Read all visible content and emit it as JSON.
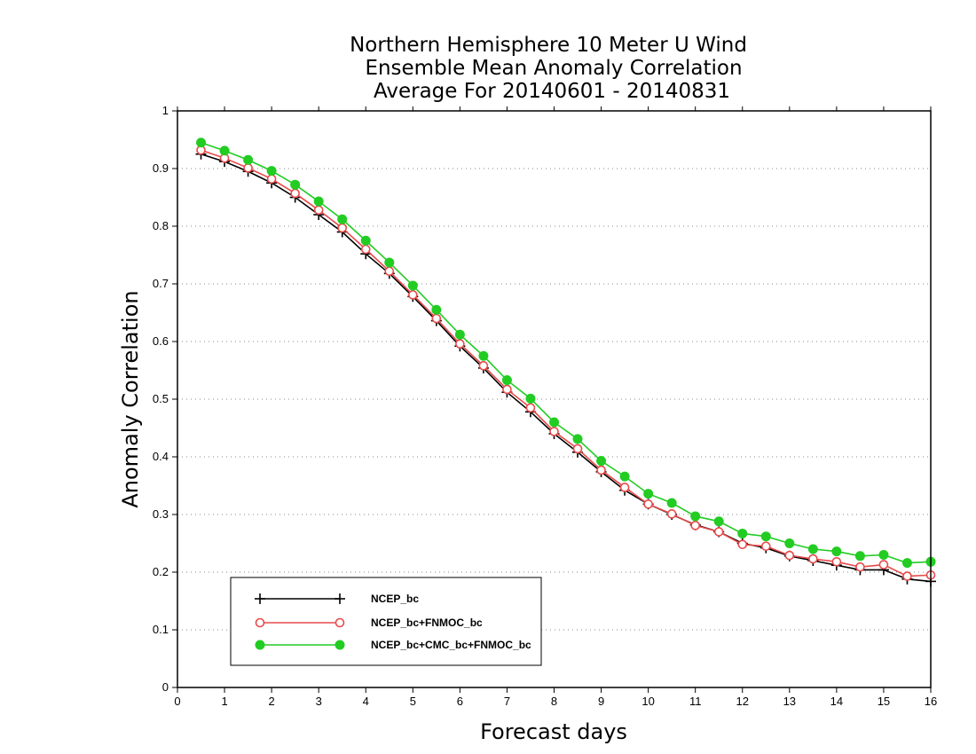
{
  "chart_data": {
    "type": "line",
    "title": [
      "Northern Hemisphere 10 Meter U Wind",
      "Ensemble Mean Anomaly Correlation",
      "Average For 20140601 - 20140831"
    ],
    "xlabel": "Forecast days",
    "ylabel": "Anomaly Correlation",
    "xlim": [
      0,
      16
    ],
    "ylim": [
      0,
      1
    ],
    "xticks": [
      0,
      1,
      2,
      3,
      4,
      5,
      6,
      7,
      8,
      9,
      10,
      11,
      12,
      13,
      14,
      15,
      16
    ],
    "yticks": [
      0,
      0.1,
      0.2,
      0.3,
      0.4,
      0.5,
      0.6,
      0.7,
      0.8,
      0.9,
      1
    ],
    "grid": "horizontal dotted",
    "legend_position": "bottom-left",
    "x": [
      0.5,
      1,
      1.5,
      2,
      2.5,
      3,
      3.5,
      4,
      4.5,
      5,
      5.5,
      6,
      6.5,
      7,
      7.5,
      8,
      8.5,
      9,
      9.5,
      10,
      10.5,
      11,
      11.5,
      12,
      12.5,
      13,
      13.5,
      14,
      14.5,
      15,
      15.5,
      16
    ],
    "series": [
      {
        "name": "NCEP_bc",
        "color": "#000000",
        "marker": "plus",
        "values": [
          0.925,
          0.912,
          0.895,
          0.875,
          0.85,
          0.82,
          0.79,
          0.752,
          0.718,
          0.678,
          0.636,
          0.592,
          0.554,
          0.512,
          0.478,
          0.44,
          0.408,
          0.374,
          0.342,
          0.318,
          0.3,
          0.282,
          0.27,
          0.25,
          0.242,
          0.228,
          0.22,
          0.212,
          0.204,
          0.204,
          0.188,
          0.184
        ]
      },
      {
        "name": "NCEP_bc+FNMOC_bc",
        "color": "#e84a4a",
        "marker": "open-circle",
        "values": [
          0.932,
          0.918,
          0.901,
          0.882,
          0.857,
          0.828,
          0.797,
          0.76,
          0.722,
          0.681,
          0.64,
          0.596,
          0.558,
          0.517,
          0.485,
          0.444,
          0.414,
          0.377,
          0.347,
          0.318,
          0.301,
          0.281,
          0.27,
          0.248,
          0.245,
          0.229,
          0.223,
          0.218,
          0.209,
          0.213,
          0.193,
          0.195
        ]
      },
      {
        "name": "NCEP_bc+CMC_bc+FNMOC_bc",
        "color": "#22cc22",
        "marker": "filled-circle",
        "values": [
          0.945,
          0.931,
          0.915,
          0.896,
          0.872,
          0.843,
          0.812,
          0.775,
          0.737,
          0.697,
          0.655,
          0.612,
          0.575,
          0.533,
          0.501,
          0.46,
          0.431,
          0.393,
          0.366,
          0.336,
          0.32,
          0.297,
          0.288,
          0.267,
          0.262,
          0.25,
          0.24,
          0.236,
          0.228,
          0.23,
          0.216,
          0.218
        ]
      }
    ]
  }
}
